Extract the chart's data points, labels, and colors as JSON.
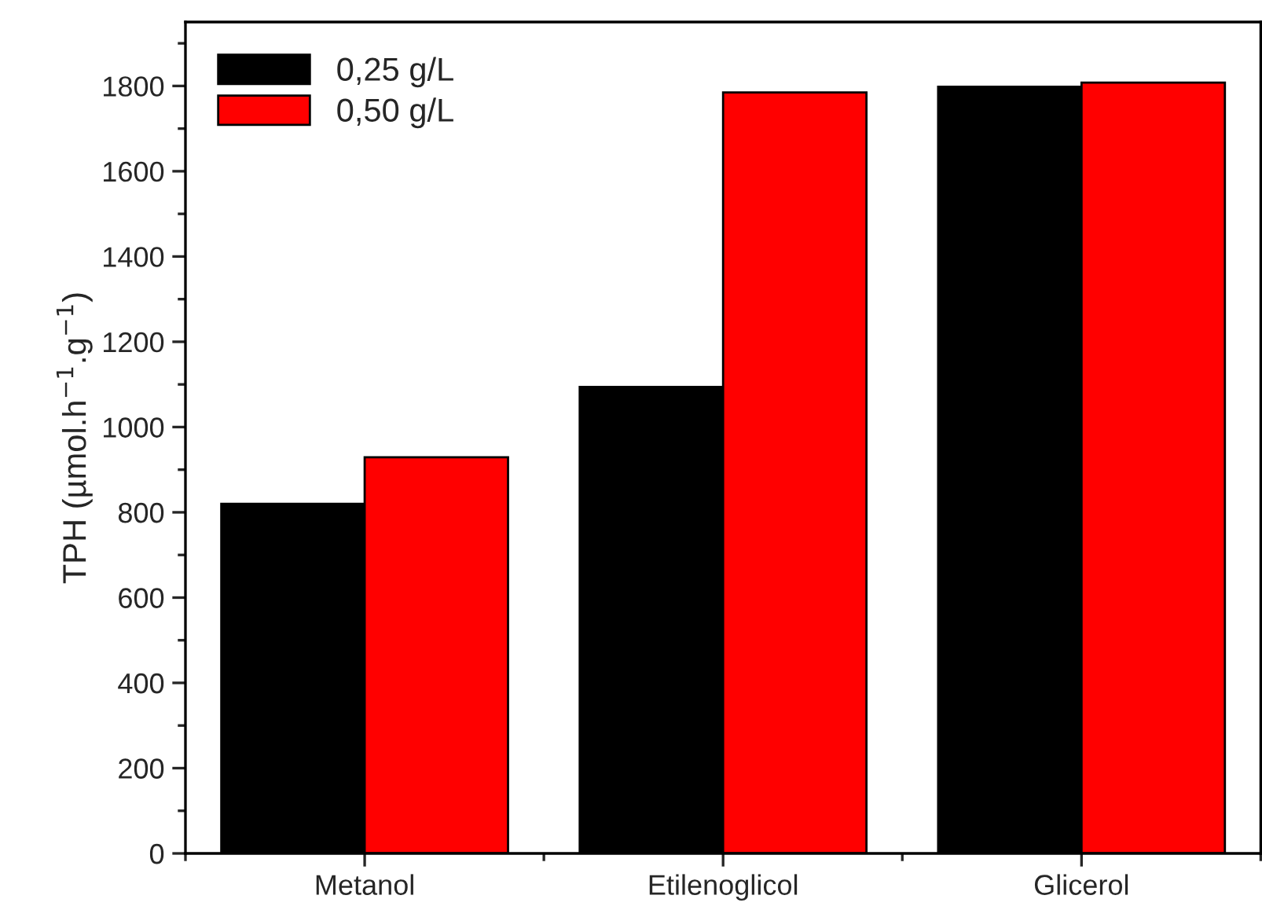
{
  "chart_data": {
    "type": "bar",
    "categories": [
      "Metanol",
      "Etilenoglicol",
      "Glicerol"
    ],
    "series": [
      {
        "name": "0,25 g/L",
        "color": "#000000",
        "values": [
          820,
          1094,
          1798
        ]
      },
      {
        "name": "0,50 g/L",
        "color": "#ff0000",
        "values": [
          929,
          1785,
          1808
        ]
      }
    ],
    "ylabel": "TPH (µmol.h$^{−1}$.g$^{−1}$)",
    "ylim": [
      0,
      1950
    ],
    "yticks": [
      0,
      200,
      400,
      600,
      800,
      1000,
      1200,
      1400,
      1600,
      1800
    ],
    "legend": "top left",
    "grid": false
  }
}
